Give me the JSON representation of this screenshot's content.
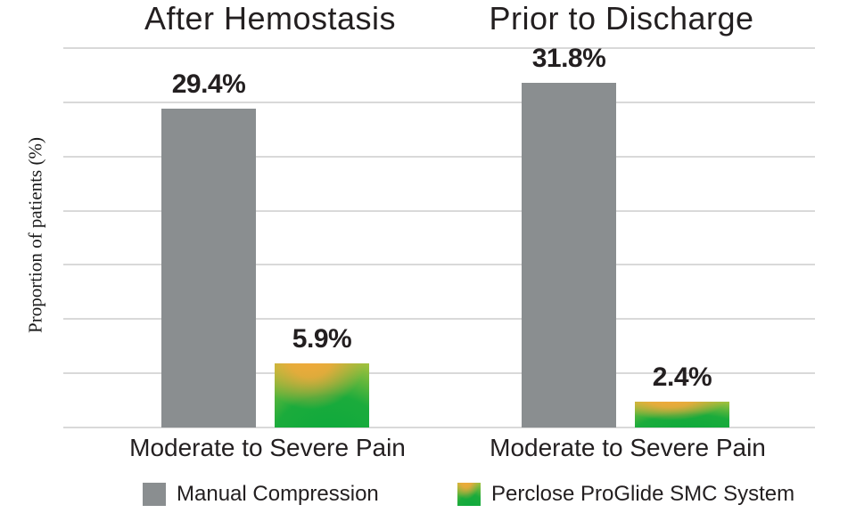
{
  "colors": {
    "manual_gray": "#8A8E90",
    "gradient_orange": "#F3A93B",
    "gradient_yellow_green": "#A6C13D",
    "gradient_green": "#0CA93C",
    "gridline": "#D9D9D9",
    "text": "#231F20"
  },
  "legend": {
    "items": [
      {
        "label": "Manual Compression",
        "swatch": "gray-solid"
      },
      {
        "label": "Perclose ProGlide SMC System",
        "swatch": "orange-green-gradient"
      }
    ]
  },
  "chart_data": {
    "type": "bar",
    "ylabel": "Proportion of patients (%)",
    "ylim": [
      0,
      35
    ],
    "gridline_step": 5,
    "grid": true,
    "legend_position": "bottom",
    "panels": [
      {
        "title": "After Hemostasis",
        "category": "Moderate to Severe Pain",
        "series": [
          {
            "name": "Manual Compression",
            "value": 29.4,
            "label": "29.4%"
          },
          {
            "name": "Perclose ProGlide SMC System",
            "value": 5.9,
            "label": "5.9%"
          }
        ]
      },
      {
        "title": "Prior to Discharge",
        "category": "Moderate to Severe Pain",
        "series": [
          {
            "name": "Manual Compression",
            "value": 31.8,
            "label": "31.8%"
          },
          {
            "name": "Perclose ProGlide SMC System",
            "value": 2.4,
            "label": "2.4%"
          }
        ]
      }
    ]
  }
}
